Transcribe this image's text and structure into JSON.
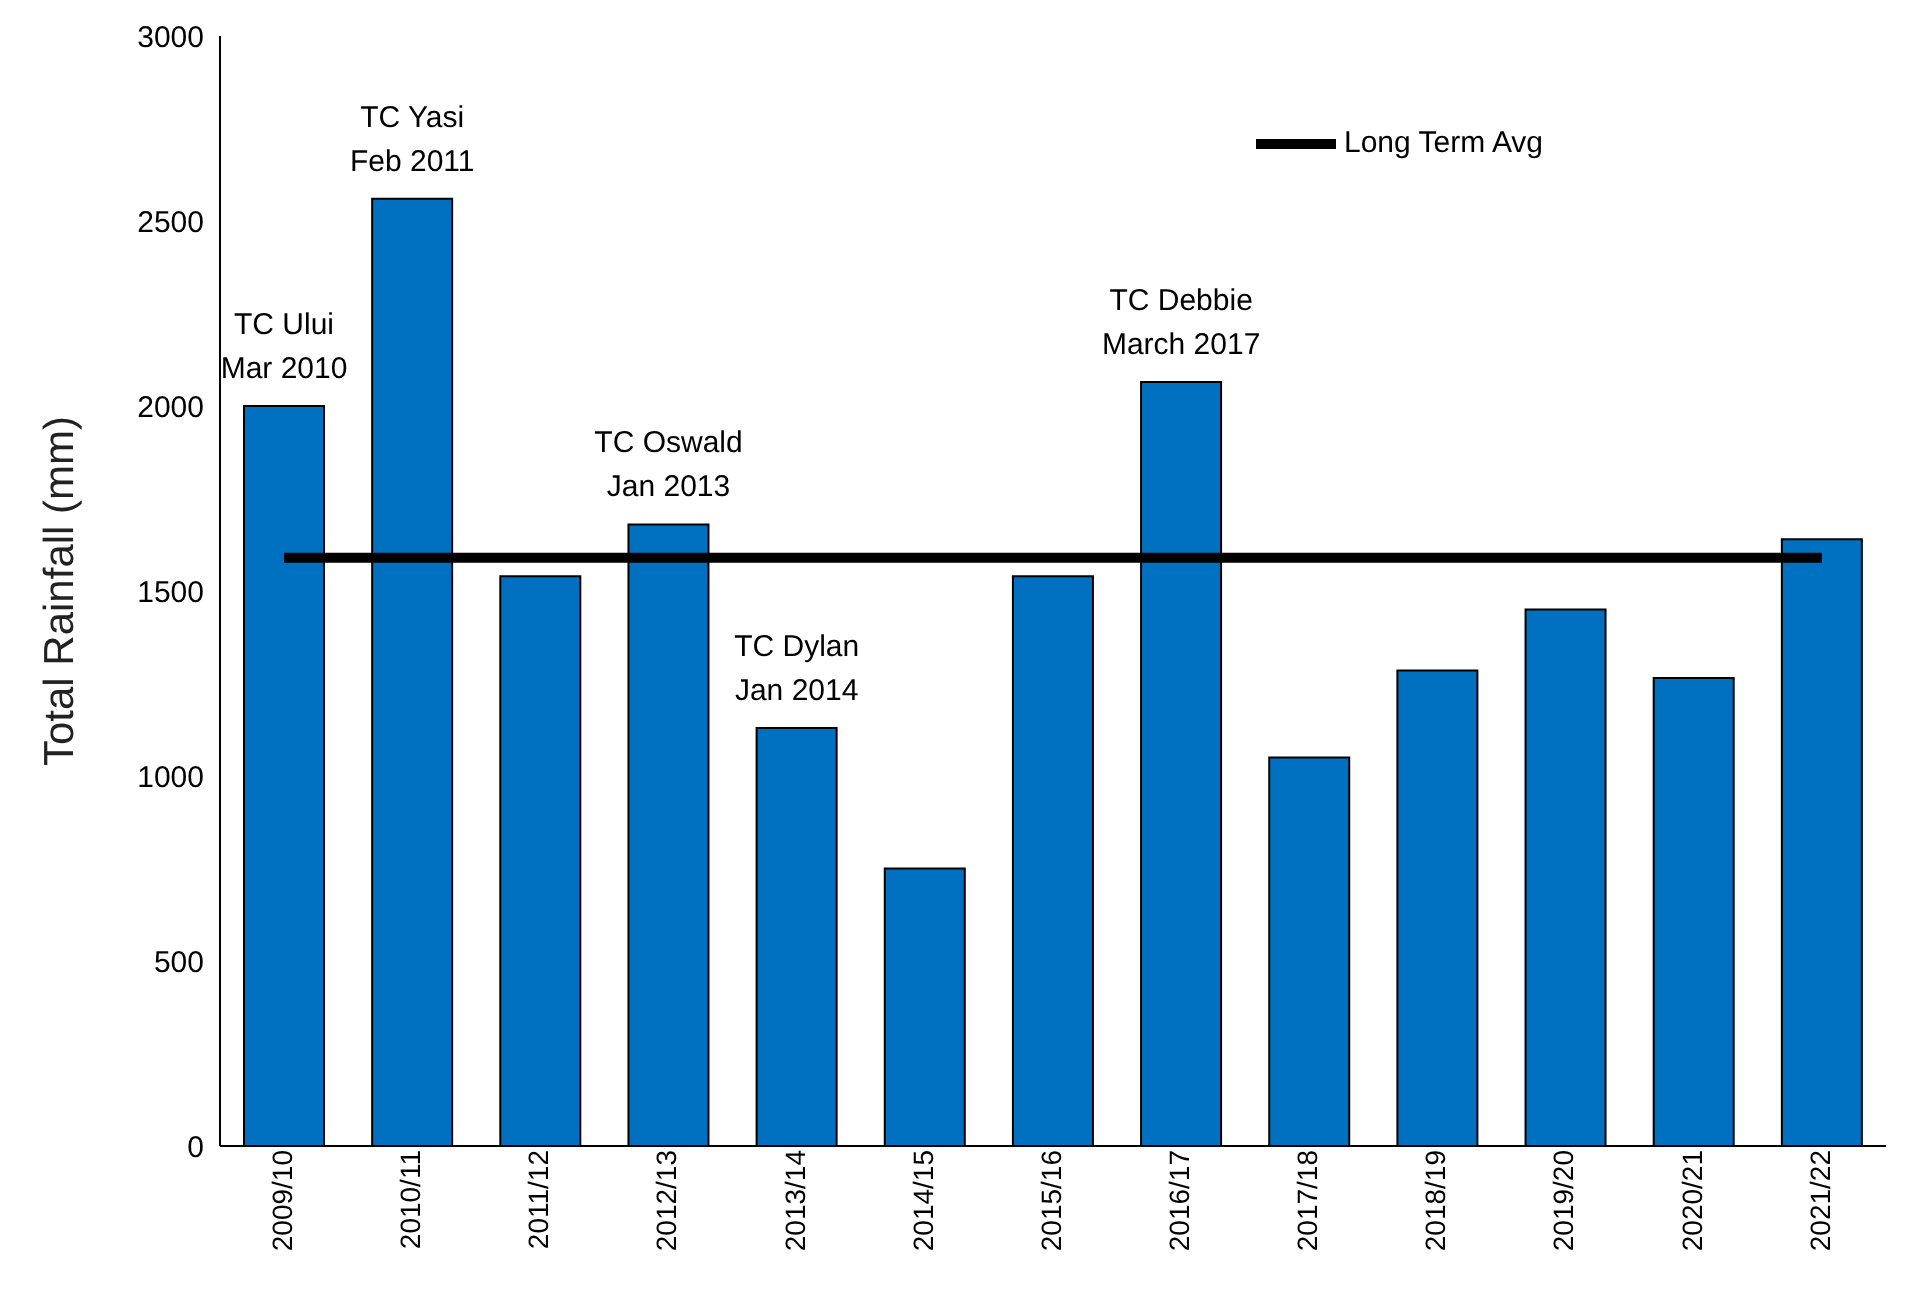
{
  "chart_data": {
    "type": "bar",
    "ylabel": "Total Rainfall (mm)",
    "categories": [
      "2009/10",
      "2010/11",
      "2011/12",
      "2012/13",
      "2013/14",
      "2014/15",
      "2015/16",
      "2016/17",
      "2017/18",
      "2018/19",
      "2019/20",
      "2020/21",
      "2021/22"
    ],
    "series": [
      {
        "color": "#0070c0",
        "values": [
          2000,
          2560,
          1540,
          1680,
          1130,
          750,
          1540,
          2065,
          1050,
          1285,
          1450,
          1265,
          1640
        ]
      },
      {
        "type": "line",
        "name": "Long Term Avg",
        "color": "#000000",
        "values": [
          1590,
          1590,
          1590,
          1590,
          1590,
          1590,
          1590,
          1590,
          1590,
          1590,
          1590,
          1590,
          1590
        ]
      }
    ],
    "ylim": [
      0,
      3000
    ],
    "yticks": [
      0,
      500,
      1000,
      1500,
      2000,
      2500,
      3000
    ],
    "grid": false,
    "legend": "top right",
    "marker": "none",
    "line_style": "solid",
    "annotations": [
      {
        "text": "TC Ului\nMar 2010",
        "x": "2009/10",
        "y": 2000
      },
      {
        "text": "TC Yasi\nFeb 2011",
        "x": "2010/11",
        "y": 2560
      },
      {
        "text": "TC Oswald\nJan 2013",
        "x": "2012/13",
        "y": 1680
      },
      {
        "text": "TC Dylan\nJan 2014",
        "x": "2013/14",
        "y": 1130
      },
      {
        "text": "TC Debbie\nMarch 2017",
        "x": "2016/17",
        "y": 2065
      }
    ]
  }
}
